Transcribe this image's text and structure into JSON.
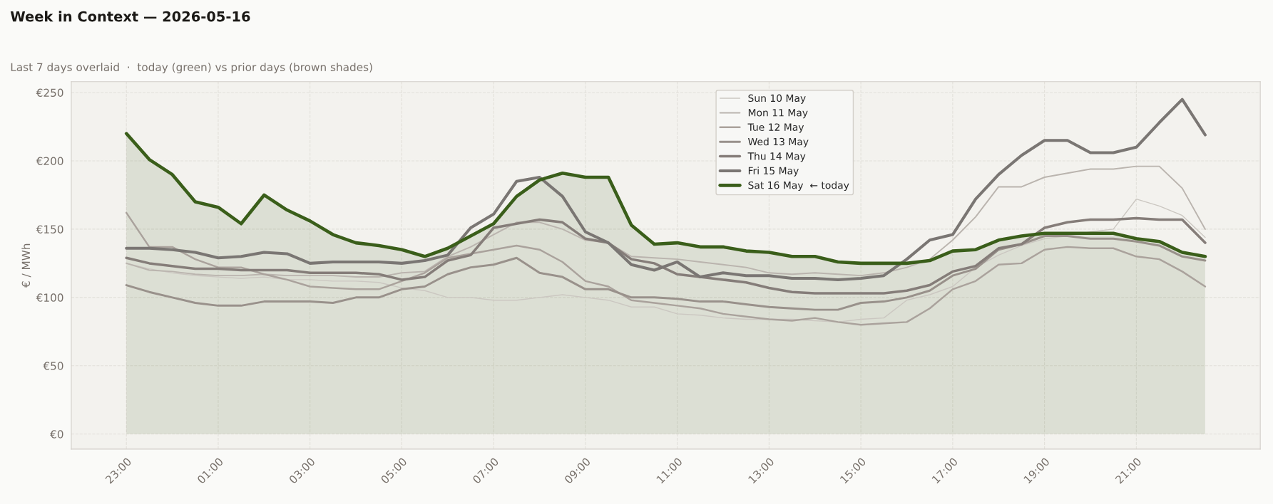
{
  "chart_data": {
    "type": "line",
    "title": "Week in Context — 2026-05-16",
    "subtitle": "Last 7 days overlaid  ·  today (green) vs prior days (brown shades)",
    "ylabel": "€ / MWh",
    "categories": [
      "23:00",
      null,
      null,
      null,
      "01:00",
      null,
      null,
      null,
      "03:00",
      null,
      null,
      null,
      "05:00",
      null,
      null,
      null,
      "07:00",
      null,
      null,
      null,
      "09:00",
      null,
      null,
      null,
      "11:00",
      null,
      null,
      null,
      "13:00",
      null,
      null,
      null,
      "15:00",
      null,
      null,
      null,
      "17:00",
      null,
      null,
      null,
      "19:00",
      null,
      null,
      null,
      "21:00",
      null,
      null,
      null
    ],
    "series": [
      {
        "name": "Sun 10 May",
        "color": "#cbc7c1",
        "values": [
          125,
          121,
          118,
          116,
          115,
          114,
          115,
          113,
          113,
          112,
          112,
          111,
          107,
          105,
          100,
          100,
          98,
          98,
          100,
          102,
          100,
          98,
          93,
          93,
          88,
          87,
          85,
          84,
          84,
          84,
          83,
          82,
          84,
          85,
          98,
          102,
          108,
          122,
          131,
          138,
          143,
          145,
          148,
          150,
          172,
          167,
          160,
          144
        ]
      },
      {
        "name": "Mon 11 May",
        "color": "#bab4ae",
        "values": [
          125,
          120,
          119,
          117,
          116,
          116,
          117,
          116,
          116,
          116,
          115,
          115,
          118,
          119,
          130,
          137,
          146,
          155,
          155,
          150,
          142,
          140,
          130,
          129,
          128,
          126,
          124,
          122,
          118,
          117,
          118,
          117,
          116,
          118,
          122,
          128,
          142,
          159,
          181,
          181,
          188,
          191,
          194,
          194,
          196,
          196,
          180,
          150
        ]
      },
      {
        "name": "Tue 12 May",
        "color": "#aaa29c",
        "values": [
          162,
          137,
          137,
          128,
          122,
          122,
          117,
          113,
          108,
          107,
          106,
          106,
          112,
          118,
          129,
          132,
          135,
          138,
          135,
          126,
          112,
          108,
          98,
          96,
          94,
          92,
          88,
          86,
          84,
          83,
          85,
          82,
          80,
          81,
          82,
          92,
          106,
          112,
          124,
          125,
          135,
          137,
          136,
          136,
          130,
          128,
          119,
          108
        ]
      },
      {
        "name": "Wed 13 May",
        "color": "#99918b",
        "values": [
          109,
          104,
          100,
          96,
          94,
          94,
          97,
          97,
          97,
          96,
          100,
          100,
          106,
          108,
          117,
          122,
          124,
          129,
          118,
          115,
          106,
          106,
          100,
          100,
          99,
          97,
          97,
          95,
          93,
          92,
          91,
          91,
          96,
          97,
          100,
          105,
          116,
          121,
          135,
          139,
          145,
          145,
          143,
          143,
          141,
          138,
          130,
          127
        ]
      },
      {
        "name": "Thu 14 May",
        "color": "#857d79",
        "values": [
          129,
          125,
          123,
          121,
          121,
          120,
          120,
          120,
          118,
          118,
          118,
          117,
          113,
          115,
          127,
          131,
          151,
          154,
          157,
          155,
          143,
          140,
          128,
          125,
          117,
          115,
          113,
          111,
          107,
          104,
          103,
          103,
          103,
          103,
          105,
          109,
          119,
          123,
          136,
          139,
          151,
          155,
          157,
          157,
          158,
          157,
          157,
          140
        ]
      },
      {
        "name": "Fri 15 May",
        "color": "#7a7673",
        "values": [
          136,
          136,
          135,
          133,
          129,
          130,
          133,
          132,
          125,
          126,
          126,
          126,
          125,
          127,
          131,
          151,
          161,
          185,
          188,
          174,
          148,
          140,
          124,
          120,
          126,
          115,
          118,
          116,
          116,
          114,
          114,
          113,
          114,
          116,
          128,
          142,
          146,
          172,
          190,
          204,
          215,
          215,
          206,
          206,
          210,
          228,
          245,
          219
        ]
      },
      {
        "name": "Sat 16 May  ← today",
        "type": "area",
        "color": "#3a5e1a",
        "values": [
          220,
          201,
          190,
          170,
          166,
          154,
          175,
          164,
          156,
          146,
          140,
          138,
          135,
          130,
          136,
          145,
          154,
          174,
          186,
          191,
          188,
          188,
          153,
          139,
          140,
          137,
          137,
          134,
          133,
          130,
          130,
          126,
          125,
          125,
          125,
          127,
          134,
          135,
          142,
          145,
          147,
          147,
          147,
          147,
          143,
          141,
          133,
          130
        ]
      }
    ],
    "ylim": [
      -11,
      258
    ],
    "yticks": [
      {
        "value": 0,
        "label": "€0"
      },
      {
        "value": 50,
        "label": "€50"
      },
      {
        "value": 100,
        "label": "€100"
      },
      {
        "value": 150,
        "label": "€150"
      },
      {
        "value": 200,
        "label": "€200"
      },
      {
        "value": 250,
        "label": "€250"
      }
    ],
    "grid": true,
    "legend": "top"
  }
}
